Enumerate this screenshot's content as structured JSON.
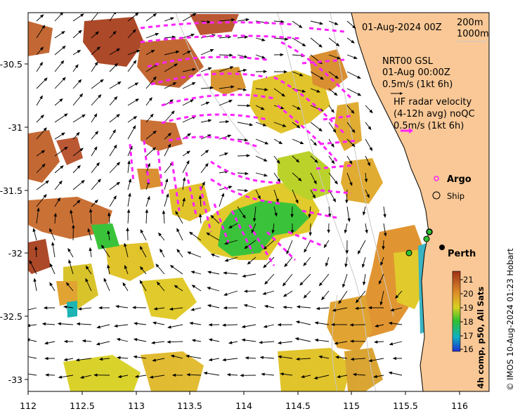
{
  "map": {
    "date_label": "01-Aug-2024 00Z",
    "legend_depth_1": "200m",
    "legend_depth_2": "1000m",
    "model_name": "NRT00 GSL",
    "model_time": "01-Aug 00:00Z",
    "model_scale": "0.5m/s (1kt 6h)",
    "radar_title": "HF radar velocity",
    "radar_sub": "(4-12h avg) noQC",
    "radar_scale": "0.5m/s (1kt 6h)",
    "argo_label": "Argo",
    "ship_label": "Ship",
    "city_label": "Perth",
    "colorbar_title": "4h comp, p50, All Sats",
    "credit": "© IMOS 10-Aug-2024 01:23 Hobart",
    "x_ticks": [
      "112",
      "112.5",
      "113",
      "113.5",
      "114",
      "114.5",
      "115",
      "115.5",
      "116"
    ],
    "y_ticks": [
      "-30.5",
      "-31",
      "-31.5",
      "-32",
      "-32.5",
      "-33"
    ],
    "colorbar_ticks": [
      "21",
      "20",
      "19",
      "18",
      "17",
      "16"
    ],
    "colors": {
      "land": "#f9c896",
      "radar_vector": "#ff22ff",
      "sst_21": "#a8401e",
      "sst_20": "#d88a28",
      "sst_19": "#e0c020",
      "sst_18": "#30c030",
      "sst_17": "#10b0b0",
      "sst_16": "#2040d0"
    }
  }
}
